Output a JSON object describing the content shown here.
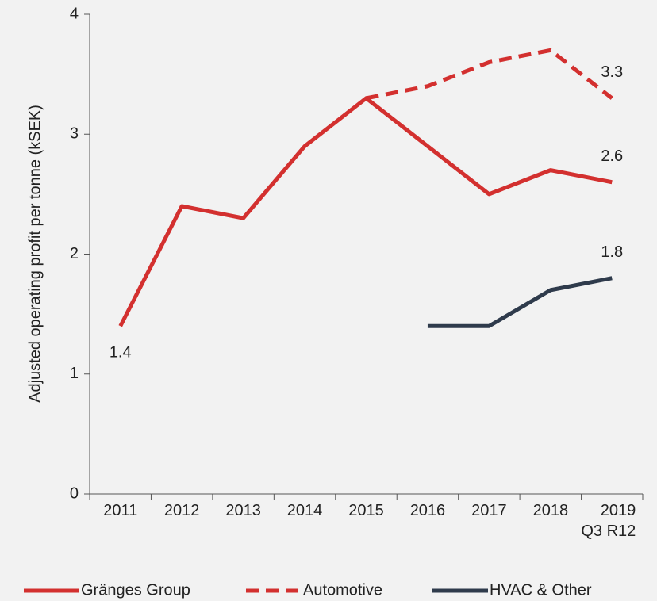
{
  "chart_data": {
    "type": "line",
    "y_label": "Adjusted operating profit per tonne (kSEK)",
    "categories": [
      "2011",
      "2012",
      "2013",
      "2014",
      "2015",
      "2016",
      "2017",
      "2018",
      "2019\nQ3 R12"
    ],
    "series": [
      {
        "name": "Gränges Group",
        "color": "#d3302f",
        "dash": false,
        "values": [
          1.4,
          2.4,
          2.3,
          2.9,
          3.3,
          2.9,
          2.5,
          2.7,
          2.6
        ],
        "value_labels": [
          "1.4",
          null,
          null,
          null,
          null,
          null,
          null,
          null,
          "2.6"
        ]
      },
      {
        "name": "Automotive",
        "color": "#d3302f",
        "dash": true,
        "values": [
          null,
          null,
          null,
          null,
          3.3,
          3.4,
          3.6,
          3.7,
          3.3
        ],
        "value_labels": [
          null,
          null,
          null,
          null,
          null,
          null,
          null,
          null,
          "3.3"
        ]
      },
      {
        "name": "HVAC & Other",
        "color": "#2f3b4c",
        "dash": false,
        "values": [
          null,
          null,
          null,
          null,
          null,
          1.4,
          1.4,
          1.7,
          1.8
        ],
        "value_labels": [
          null,
          null,
          null,
          null,
          null,
          null,
          null,
          null,
          "1.8"
        ]
      }
    ],
    "ylim": [
      0,
      4
    ],
    "yticks": [
      0,
      1,
      2,
      3,
      4
    ],
    "grid": false,
    "legend": "bottom"
  }
}
